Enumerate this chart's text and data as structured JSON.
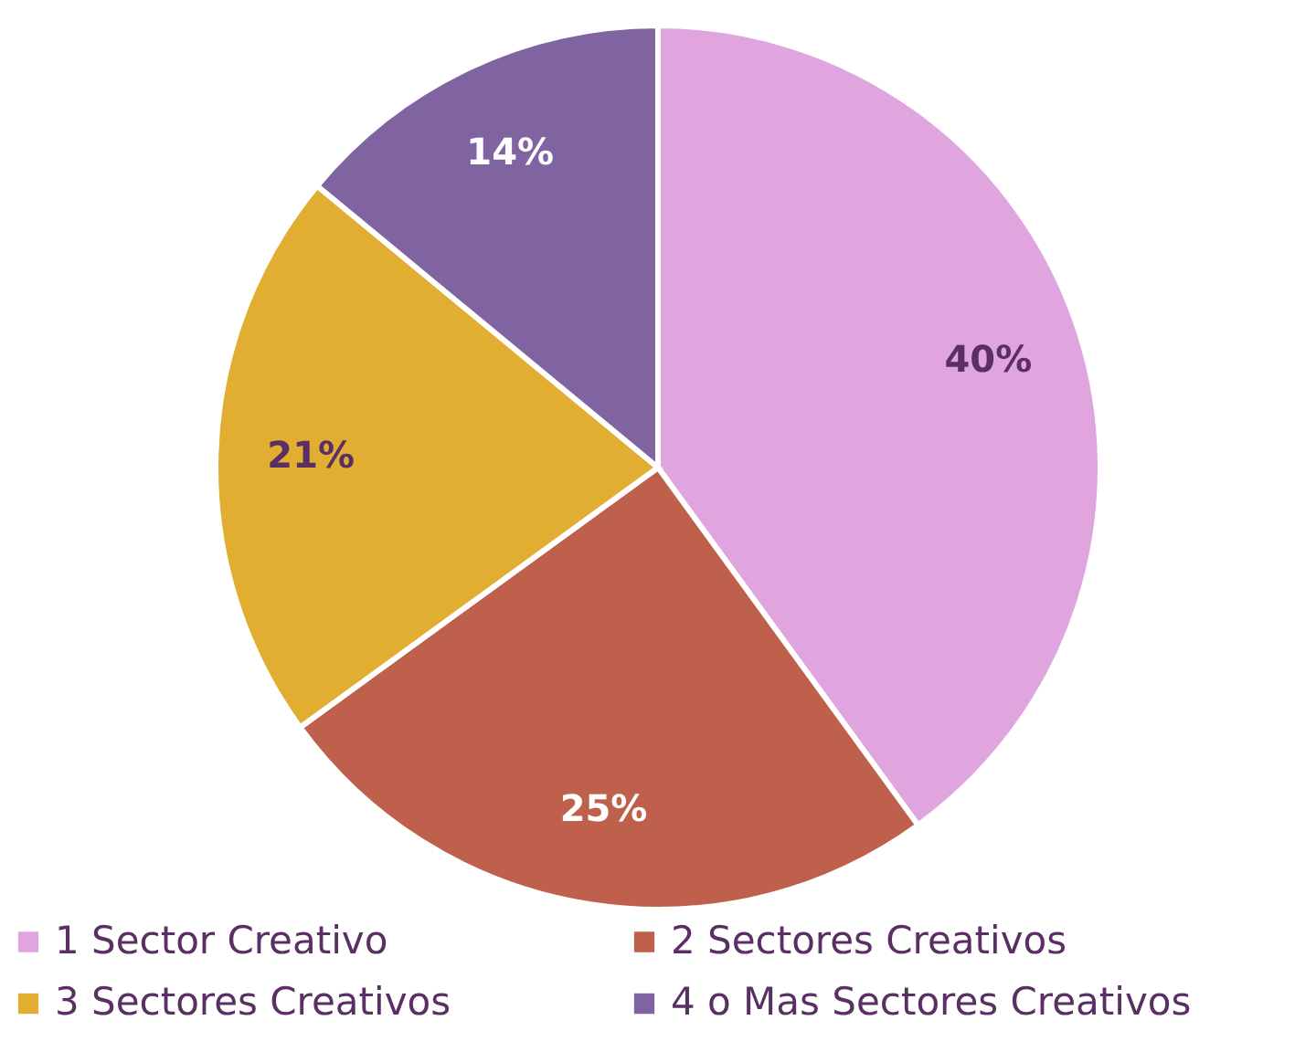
{
  "chart_data": {
    "type": "pie",
    "categories": [
      "1 Sector Creativo",
      "2 Sectores Creativos",
      "3 Sectores Creativos",
      "4 o Mas Sectores Creativos"
    ],
    "values": [
      40,
      25,
      21,
      14
    ],
    "colors": [
      "#e0a4de",
      "#bf604d",
      "#e2ae32",
      "#8064a2"
    ],
    "value_labels": [
      "40%",
      "25%",
      "21%",
      "14%"
    ],
    "legend": "bottom"
  }
}
